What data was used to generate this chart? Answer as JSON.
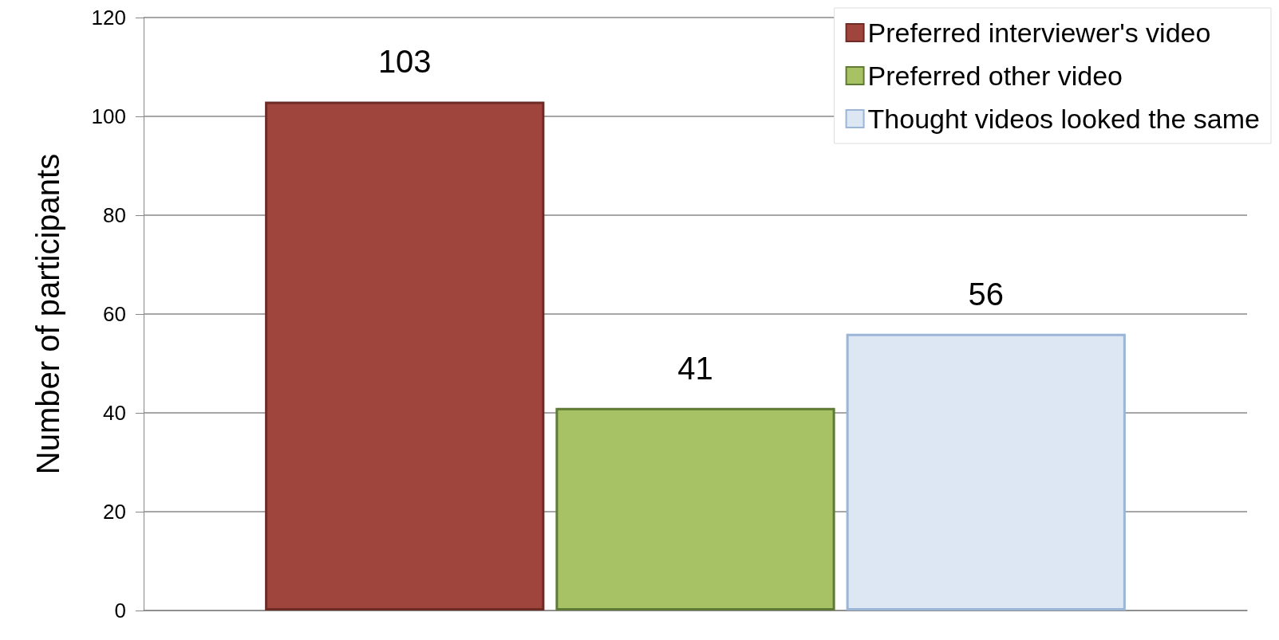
{
  "chart_data": {
    "type": "bar",
    "ylabel": "Number of participants",
    "categories": [
      null
    ],
    "series": [
      {
        "name": "Preferred interviewer's video",
        "color": "#a0453e",
        "values": [
          103
        ]
      },
      {
        "name": "Preferred other video",
        "color": "#a6c264",
        "values": [
          41
        ]
      },
      {
        "name": "Thought videos looked the same",
        "color": "#dde7f3",
        "values": [
          56
        ]
      }
    ],
    "ylim": [
      0,
      120
    ],
    "yticks": [
      0,
      20,
      40,
      60,
      80,
      100,
      120
    ],
    "grid": "y",
    "legend": "top right",
    "data_labels": true
  }
}
